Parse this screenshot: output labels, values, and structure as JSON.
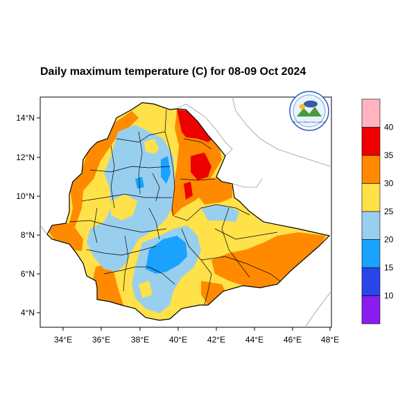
{
  "title": "Daily maximum temperature (C) for 08-09 Oct 2024",
  "map": {
    "lon_ticks": [
      "34°E",
      "36°E",
      "38°E",
      "40°E",
      "42°E",
      "44°E",
      "46°E",
      "48°E"
    ],
    "lat_ticks": [
      "14°N",
      "12°N",
      "10°N",
      "8°N",
      "6°N",
      "4°N"
    ]
  },
  "legend": {
    "levels": [
      "10",
      "15",
      "20",
      "25",
      "30",
      "35",
      "40"
    ],
    "colors": [
      "#8a1cf0",
      "#2a45e8",
      "#1aa2ff",
      "#99cfee",
      "#ffe14a",
      "#ff8a00",
      "#ee0000",
      "#ffb4c0"
    ]
  },
  "logo": {
    "text": "Ethiopian Meteorology Institute"
  }
}
